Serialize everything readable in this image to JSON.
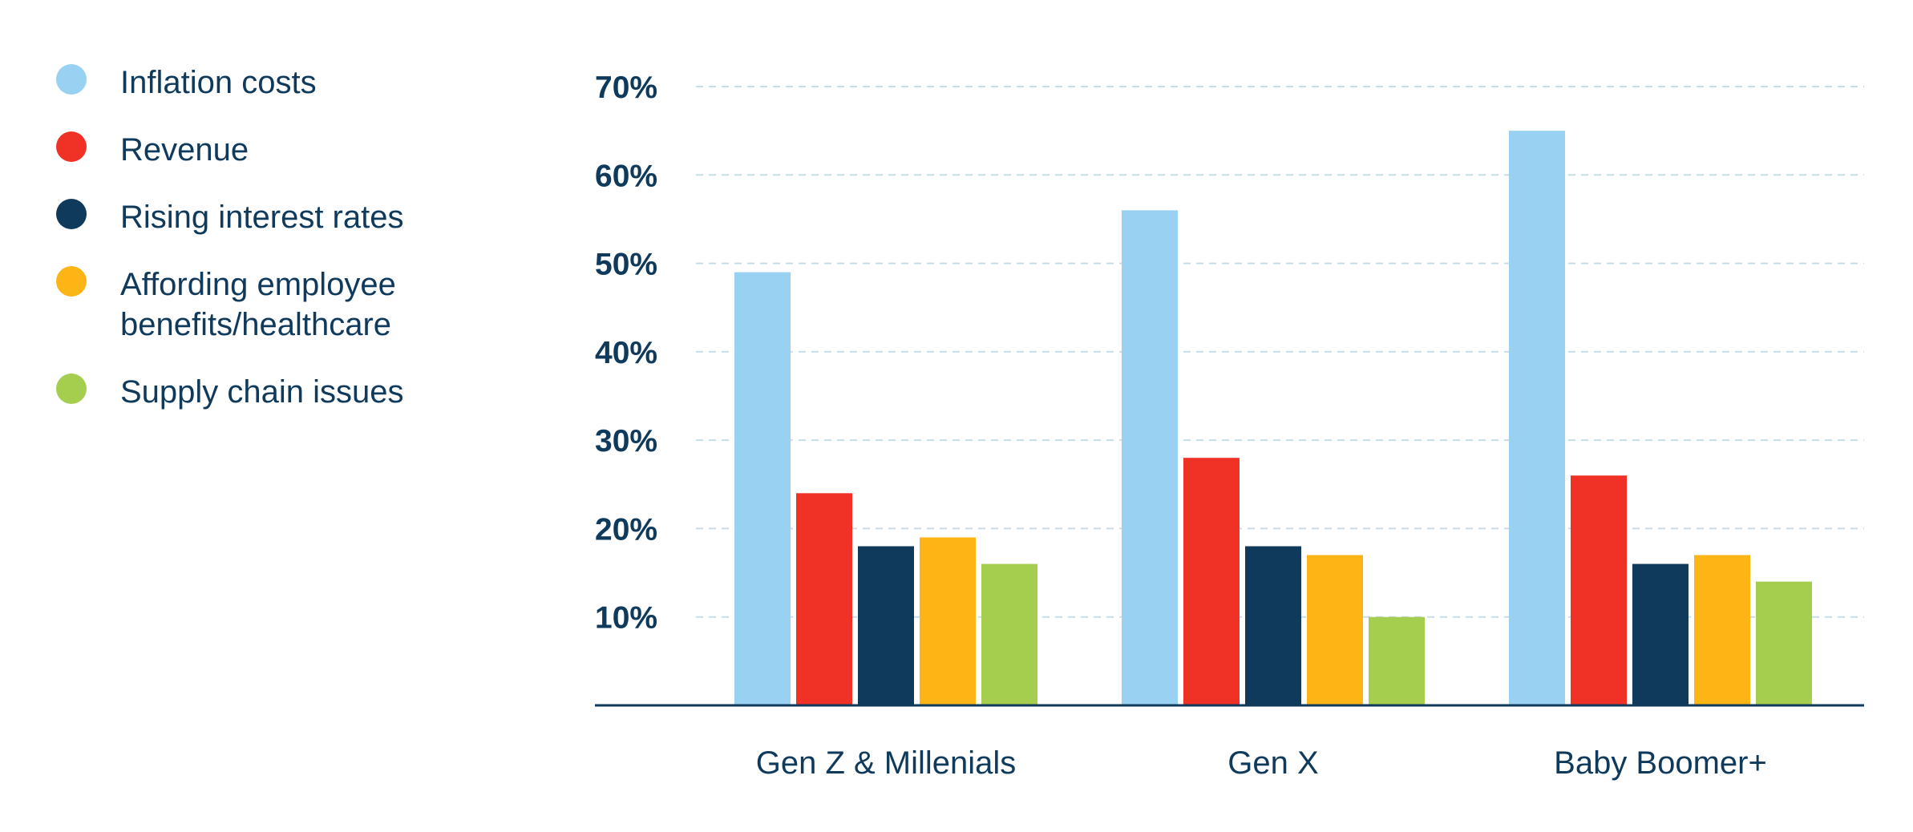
{
  "chart_data": {
    "type": "bar",
    "categories": [
      "Gen Z & Millenials",
      "Gen X",
      "Baby Boomer+"
    ],
    "series": [
      {
        "name": "Inflation costs",
        "color": "#99d1f3",
        "values": [
          49,
          56,
          65
        ]
      },
      {
        "name": "Revenue",
        "color": "#f03226",
        "values": [
          24,
          28,
          26
        ]
      },
      {
        "name": "Rising interest rates",
        "color": "#0f3a5c",
        "values": [
          18,
          18,
          16
        ]
      },
      {
        "name": "Affording employee\nbenefits/healthcare",
        "color": "#fdb515",
        "values": [
          19,
          17,
          17
        ]
      },
      {
        "name": "Supply chain issues",
        "color": "#a6ce4e",
        "values": [
          16,
          10,
          14
        ]
      }
    ],
    "y_ticks": [
      "10%",
      "20%",
      "30%",
      "40%",
      "50%",
      "60%",
      "70%"
    ],
    "ylim": [
      0,
      70
    ],
    "grid": true,
    "legend_position": "left"
  }
}
